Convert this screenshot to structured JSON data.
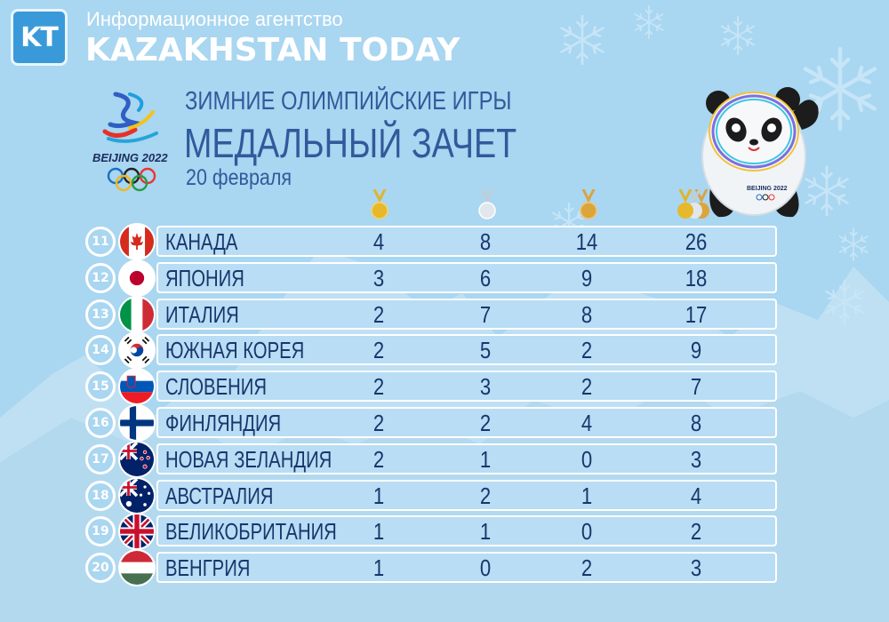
{
  "header": {
    "logo_text": "KT",
    "agency_subtitle": "Информационное агентство",
    "agency_name": "KAZAKHSTAN TODAY"
  },
  "title": {
    "line1": "ЗИМНИЕ ОЛИМПИЙСКИЕ ИГРЫ",
    "line2": "МЕДАЛЬНЫЙ ЗАЧЕТ",
    "date": "20 февраля"
  },
  "olympic_logo_text": "BEIJING 2022",
  "mascot_badge_text": "BEIJING 2022",
  "colors": {
    "background": "#a9d6f0",
    "title": "#2f5b9c",
    "row_text": "#17376d",
    "gold": "#e0b52c",
    "silver": "#d6dfe6",
    "bronze": "#d9a441"
  },
  "columns": {
    "icons": [
      "gold-medal-icon",
      "silver-medal-icon",
      "bronze-medal-icon",
      "total-medals-icon"
    ]
  },
  "rows": [
    {
      "rank": "11",
      "country": "КАНАДА",
      "flag": "canada-flag-icon",
      "gold": "4",
      "silver": "8",
      "bronze": "14",
      "total": "26"
    },
    {
      "rank": "12",
      "country": "ЯПОНИЯ",
      "flag": "japan-flag-icon",
      "gold": "3",
      "silver": "6",
      "bronze": "9",
      "total": "18"
    },
    {
      "rank": "13",
      "country": "ИТАЛИЯ",
      "flag": "italy-flag-icon",
      "gold": "2",
      "silver": "7",
      "bronze": "8",
      "total": "17"
    },
    {
      "rank": "14",
      "country": "ЮЖНАЯ КОРЕЯ",
      "flag": "south-korea-flag-icon",
      "gold": "2",
      "silver": "5",
      "bronze": "2",
      "total": "9"
    },
    {
      "rank": "15",
      "country": "СЛОВЕНИЯ",
      "flag": "slovenia-flag-icon",
      "gold": "2",
      "silver": "3",
      "bronze": "2",
      "total": "7"
    },
    {
      "rank": "16",
      "country": "ФИНЛЯНДИЯ",
      "flag": "finland-flag-icon",
      "gold": "2",
      "silver": "2",
      "bronze": "4",
      "total": "8"
    },
    {
      "rank": "17",
      "country": "НОВАЯ ЗЕЛАНДИЯ",
      "flag": "new-zealand-flag-icon",
      "gold": "2",
      "silver": "1",
      "bronze": "0",
      "total": "3"
    },
    {
      "rank": "18",
      "country": "АВСТРАЛИЯ",
      "flag": "australia-flag-icon",
      "gold": "1",
      "silver": "2",
      "bronze": "1",
      "total": "4"
    },
    {
      "rank": "19",
      "country": "ВЕЛИКОБРИТАНИЯ",
      "flag": "uk-flag-icon",
      "gold": "1",
      "silver": "1",
      "bronze": "0",
      "total": "2"
    },
    {
      "rank": "20",
      "country": "ВЕНГРИЯ",
      "flag": "hungary-flag-icon",
      "gold": "1",
      "silver": "0",
      "bronze": "2",
      "total": "3"
    }
  ]
}
